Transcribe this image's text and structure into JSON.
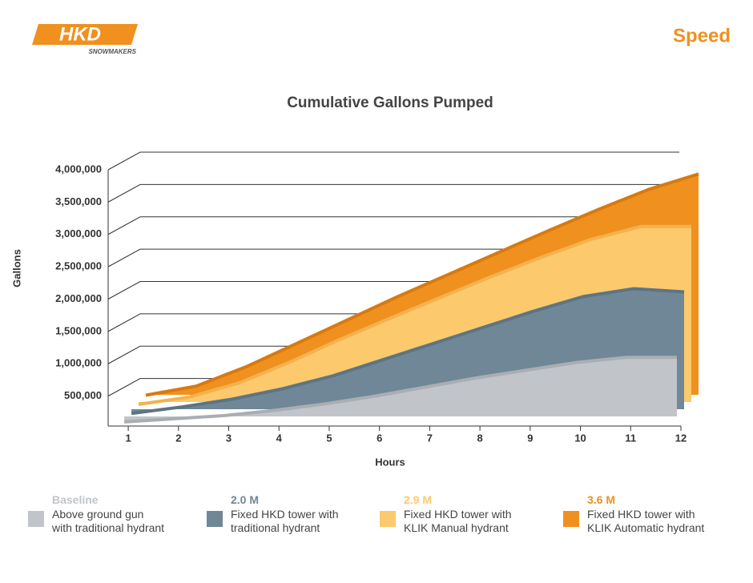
{
  "header": {
    "logo": "HKD",
    "logo_sub": "SNOWMAKERS",
    "section": "Speed"
  },
  "chart_data": {
    "type": "area3d",
    "title": "Cumulative Gallons Pumped",
    "x_label": "Hours",
    "y_label": "Gallons",
    "x": [
      1,
      2,
      3,
      4,
      5,
      6,
      7,
      8,
      9,
      10,
      11,
      12
    ],
    "xlim": [
      0.6,
      12
    ],
    "xticks": [
      1,
      2,
      3,
      4,
      5,
      6,
      7,
      8,
      9,
      10,
      11,
      12
    ],
    "ylim": [
      0,
      4000000
    ],
    "yticks": [
      {
        "value": 500000,
        "label": "500,000"
      },
      {
        "value": 1000000,
        "label": "1,000,000"
      },
      {
        "value": 1500000,
        "label": "1,500,000"
      },
      {
        "value": 2000000,
        "label": "2,000,000"
      },
      {
        "value": 2500000,
        "label": "2,500,000"
      },
      {
        "value": 3000000,
        "label": "3,000,000"
      },
      {
        "value": 3500000,
        "label": "3,500,000"
      },
      {
        "value": 4000000,
        "label": "4,000,000"
      }
    ],
    "grid": true,
    "series": [
      {
        "heading": "Baseline",
        "name": "Above ground gun\nwith traditional hydrant",
        "color": "#c1c5c9",
        "edge": "#a9aeb3",
        "values": [
          100000,
          150000,
          200000,
          280000,
          380000,
          500000,
          640000,
          780000,
          900000,
          1020000,
          1100000,
          1100000
        ]
      },
      {
        "heading": "2.0 M",
        "name": "Fixed HKD tower with\ntraditional hydrant",
        "color": "#6f8797",
        "edge": "#5d7483",
        "values": [
          120000,
          220000,
          340000,
          500000,
          700000,
          950000,
          1200000,
          1450000,
          1700000,
          1930000,
          2050000,
          2000000
        ]
      },
      {
        "heading": "2.9 M",
        "name": "Fixed HKD tower with\nKLIK Manual hydrant",
        "color": "#fcc96c",
        "edge": "#f3b24d",
        "values": [
          150000,
          260000,
          480000,
          800000,
          1150000,
          1480000,
          1800000,
          2120000,
          2420000,
          2700000,
          2900000,
          2900000
        ]
      },
      {
        "heading": "3.6 M",
        "name": "Fixed HKD tower with\nKLIK Automatic hydrant",
        "color": "#f0901f",
        "edge": "#d77a10",
        "values": [
          180000,
          320000,
          620000,
          980000,
          1340000,
          1700000,
          2040000,
          2380000,
          2720000,
          3050000,
          3360000,
          3600000
        ]
      }
    ]
  }
}
